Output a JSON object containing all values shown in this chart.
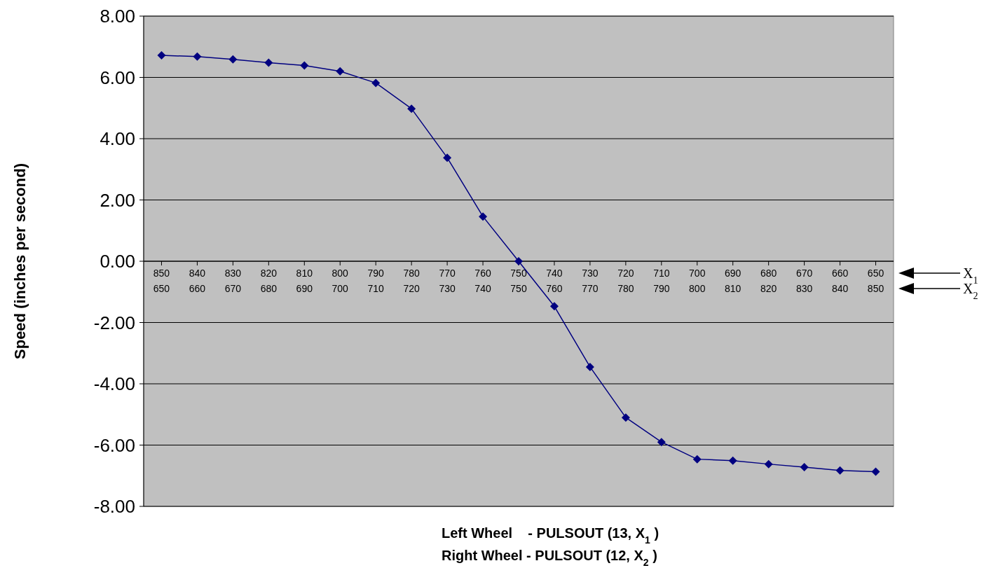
{
  "chart_data": {
    "type": "line",
    "xlabel": "Left Wheel    - PULSOUT (13, X$_{1}$ )\nRight Wheel - PULSOUT (12, X$_{2}$ )",
    "ylabel": "Speed (inches per second)",
    "categories": [
      "850\n650",
      "840\n660",
      "830\n670",
      "820\n680",
      "810\n690",
      "800\n700",
      "790\n710",
      "780\n720",
      "770\n730",
      "760\n740",
      "750\n750",
      "740\n760",
      "730\n770",
      "720\n780",
      "710\n790",
      "700\n800",
      "690\n810",
      "680\n820",
      "670\n830",
      "660\n840",
      "650\n850"
    ],
    "series": [
      {
        "color": "#000080",
        "values": [
          6.72,
          6.68,
          6.59,
          6.48,
          6.39,
          6.2,
          5.82,
          4.98,
          3.38,
          1.46,
          0,
          -1.47,
          -3.45,
          -5.1,
          -5.9,
          -6.46,
          -6.51,
          -6.62,
          -6.72,
          -6.83,
          -6.87
        ]
      }
    ],
    "ylim": [
      -8,
      8
    ],
    "yticks": [
      {
        "value": -8,
        "label": "-8.00"
      },
      {
        "value": -6,
        "label": "-6.00"
      },
      {
        "value": -4,
        "label": "-4.00"
      },
      {
        "value": -2,
        "label": "-2.00"
      },
      {
        "value": 0,
        "label": "0.00"
      },
      {
        "value": 2,
        "label": "2.00"
      },
      {
        "value": 4,
        "label": "4.00"
      },
      {
        "value": 6,
        "label": "6.00"
      },
      {
        "value": 8,
        "label": "8.00"
      }
    ],
    "grid": "y",
    "marker": "diamond",
    "line_style": "solid",
    "annotations": [
      "X$_{1}$",
      "X$_{2}$"
    ]
  }
}
